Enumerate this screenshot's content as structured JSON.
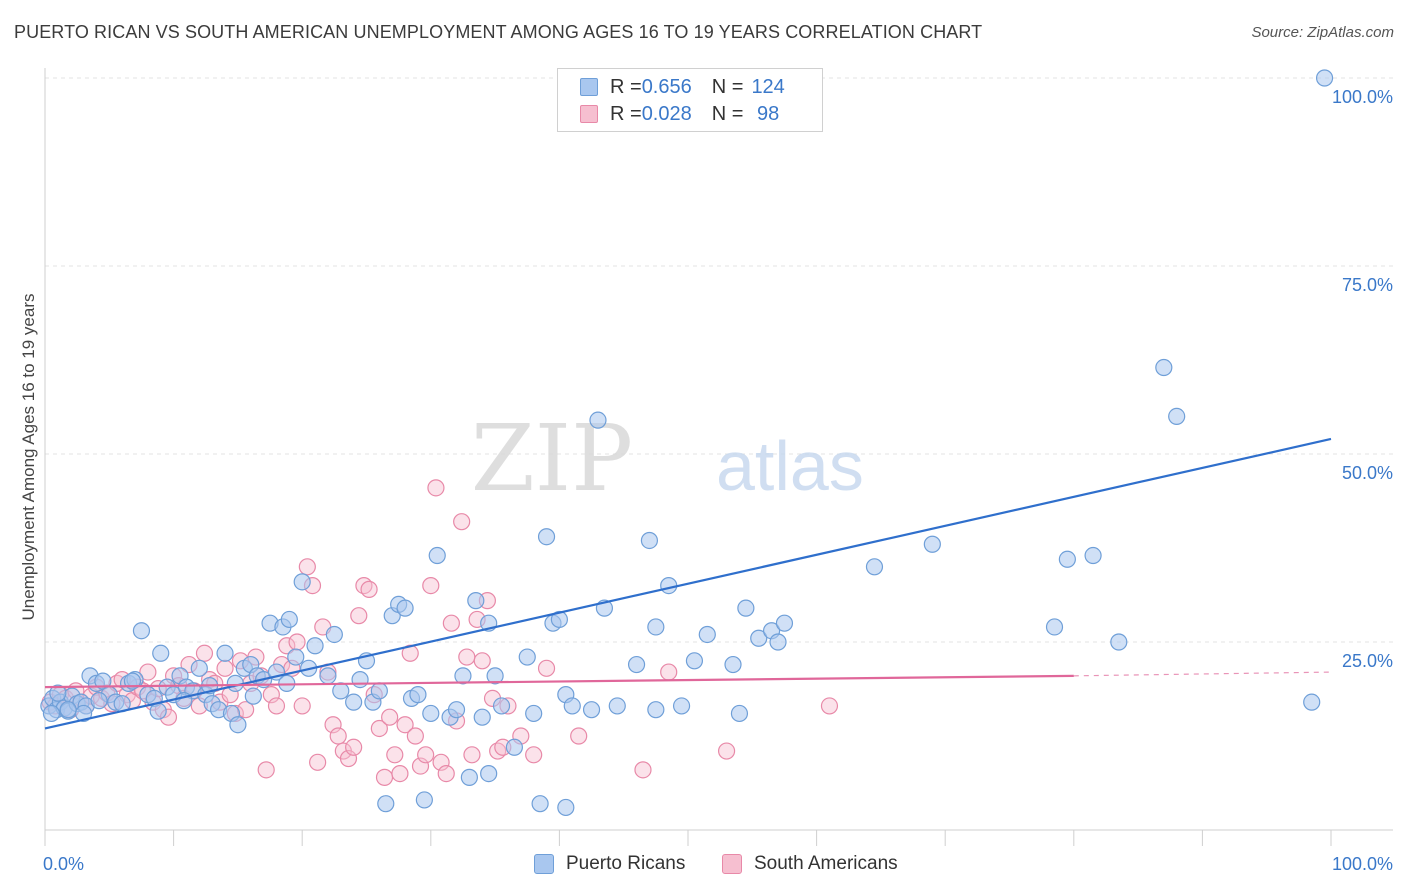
{
  "title": "PUERTO RICAN VS SOUTH AMERICAN UNEMPLOYMENT AMONG AGES 16 TO 19 YEARS CORRELATION CHART",
  "source": "Source: ZipAtlas.com",
  "watermark": {
    "zip": "ZIP",
    "atlas": "atlas"
  },
  "legend": [
    {
      "r_label": "R = ",
      "r_value": "0.656",
      "n_label": "N = ",
      "n_value": "124"
    },
    {
      "r_label": "R = ",
      "r_value": "0.028",
      "n_label": "N = ",
      "n_value": " 98"
    }
  ],
  "bottom_legend": [
    "Puerto Ricans",
    "South Americans"
  ],
  "colors": {
    "blue_fill": "#a9c7ef",
    "blue_stroke": "#6f9fd8",
    "blue_line": "#2f6fcc",
    "pink_fill": "#f6bfd0",
    "pink_stroke": "#e889a8",
    "pink_line": "#e0679a",
    "tick_label": "#3a78c9",
    "grid": "#e3e3e3"
  },
  "chart_data": {
    "type": "scatter",
    "title": "PUERTO RICAN VS SOUTH AMERICAN UNEMPLOYMENT AMONG AGES 16 TO 19 YEARS CORRELATION CHART",
    "xlabel": "",
    "ylabel": "Unemployment Among Ages 16 to 19 years",
    "xlim": [
      0,
      100
    ],
    "ylim": [
      0,
      100
    ],
    "x_tick_labels": [
      "0.0%",
      "100.0%"
    ],
    "y_ticks": [
      25,
      50,
      75,
      100
    ],
    "y_tick_labels": [
      "25.0%",
      "50.0%",
      "75.0%",
      "100.0%"
    ],
    "grid": true,
    "legend_position": "top-center",
    "series": [
      {
        "name": "Puerto Ricans",
        "R": 0.656,
        "N": 124,
        "trend": {
          "x0": 0,
          "y0": 13.5,
          "x1": 100,
          "y1": 52.0,
          "dashed_from": null
        },
        "points": [
          [
            0.3,
            16.5
          ],
          [
            0.6,
            17.5
          ],
          [
            0.9,
            16.0
          ],
          [
            1.2,
            17.0
          ],
          [
            1.5,
            16.2
          ],
          [
            1.8,
            15.8
          ],
          [
            2.1,
            17.8
          ],
          [
            2.5,
            16.8
          ],
          [
            0.5,
            15.5
          ],
          [
            1.0,
            18.2
          ],
          [
            2.8,
            17.0
          ],
          [
            3.2,
            16.5
          ],
          [
            3.5,
            20.5
          ],
          [
            4.0,
            19.5
          ],
          [
            4.5,
            19.8
          ],
          [
            5.0,
            18.0
          ],
          [
            5.5,
            17.0
          ],
          [
            6.0,
            16.8
          ],
          [
            6.5,
            19.5
          ],
          [
            7.0,
            20.0
          ],
          [
            7.5,
            26.5
          ],
          [
            8.0,
            18.0
          ],
          [
            8.5,
            17.5
          ],
          [
            9.0,
            23.5
          ],
          [
            9.5,
            19.0
          ],
          [
            10.0,
            18.0
          ],
          [
            10.5,
            20.5
          ],
          [
            11.0,
            19.0
          ],
          [
            11.5,
            18.5
          ],
          [
            12.0,
            21.5
          ],
          [
            12.5,
            18.0
          ],
          [
            13.0,
            16.8
          ],
          [
            13.5,
            16.0
          ],
          [
            14.0,
            23.5
          ],
          [
            14.5,
            15.5
          ],
          [
            15.0,
            14.0
          ],
          [
            15.5,
            21.5
          ],
          [
            16.0,
            22.0
          ],
          [
            16.5,
            20.5
          ],
          [
            17.0,
            20.0
          ],
          [
            17.5,
            27.5
          ],
          [
            18.0,
            21.0
          ],
          [
            18.5,
            27.0
          ],
          [
            19.0,
            28.0
          ],
          [
            19.5,
            23.0
          ],
          [
            20.0,
            33.0
          ],
          [
            21.0,
            24.5
          ],
          [
            22.0,
            20.5
          ],
          [
            23.0,
            18.5
          ],
          [
            24.0,
            17.0
          ],
          [
            24.5,
            20.0
          ],
          [
            25.0,
            22.5
          ],
          [
            25.5,
            17.0
          ],
          [
            26.0,
            18.5
          ],
          [
            27.0,
            28.5
          ],
          [
            27.5,
            30.0
          ],
          [
            28.0,
            29.5
          ],
          [
            28.5,
            17.5
          ],
          [
            29.0,
            18.0
          ],
          [
            30.5,
            36.5
          ],
          [
            31.5,
            15.0
          ],
          [
            32.5,
            20.5
          ],
          [
            33.5,
            30.5
          ],
          [
            34.0,
            15.0
          ],
          [
            34.5,
            27.5
          ],
          [
            35.0,
            20.5
          ],
          [
            35.5,
            16.5
          ],
          [
            36.5,
            11.0
          ],
          [
            37.5,
            23.0
          ],
          [
            38.0,
            15.5
          ],
          [
            39.0,
            39.0
          ],
          [
            39.5,
            27.5
          ],
          [
            40.0,
            28.0
          ],
          [
            40.5,
            18.0
          ],
          [
            41.0,
            16.5
          ],
          [
            42.5,
            16.0
          ],
          [
            43.0,
            54.5
          ],
          [
            43.5,
            29.5
          ],
          [
            44.5,
            16.5
          ],
          [
            47.0,
            38.5
          ],
          [
            47.5,
            27.0
          ],
          [
            48.5,
            32.5
          ],
          [
            49.5,
            16.5
          ],
          [
            50.5,
            22.5
          ],
          [
            51.5,
            26.0
          ],
          [
            53.5,
            22.0
          ],
          [
            54.5,
            29.5
          ],
          [
            54.0,
            15.5
          ],
          [
            55.5,
            25.5
          ],
          [
            56.5,
            26.5
          ],
          [
            57.5,
            27.5
          ],
          [
            57.0,
            25.0
          ],
          [
            64.5,
            35.0
          ],
          [
            69.0,
            38.0
          ],
          [
            78.5,
            27.0
          ],
          [
            79.5,
            36.0
          ],
          [
            81.5,
            36.5
          ],
          [
            83.5,
            25.0
          ],
          [
            87.0,
            61.5
          ],
          [
            88.0,
            55.0
          ],
          [
            98.5,
            17.0
          ],
          [
            99.5,
            100.0
          ],
          [
            1.8,
            16.0
          ],
          [
            3.0,
            15.5
          ],
          [
            4.2,
            17.2
          ],
          [
            6.8,
            19.8
          ],
          [
            8.8,
            15.8
          ],
          [
            10.8,
            17.2
          ],
          [
            12.8,
            19.2
          ],
          [
            14.8,
            19.5
          ],
          [
            16.2,
            17.8
          ],
          [
            18.8,
            19.5
          ],
          [
            20.5,
            21.5
          ],
          [
            22.5,
            26.0
          ],
          [
            26.5,
            3.5
          ],
          [
            29.5,
            4.0
          ],
          [
            30.0,
            15.5
          ],
          [
            33.0,
            7.0
          ],
          [
            34.5,
            7.5
          ],
          [
            32.0,
            16.0
          ],
          [
            38.5,
            3.5
          ],
          [
            40.5,
            3.0
          ],
          [
            46.0,
            22.0
          ],
          [
            47.5,
            16.0
          ]
        ]
      },
      {
        "name": "South Americans",
        "R": 0.028,
        "N": 98,
        "trend": {
          "x0": 0,
          "y0": 19.0,
          "x1": 80,
          "y1": 20.5,
          "dashed_from": 80,
          "dashed_to": 100,
          "dashed_y1": 21.0
        },
        "points": [
          [
            0.4,
            17.0
          ],
          [
            0.8,
            16.5
          ],
          [
            1.2,
            18.0
          ],
          [
            1.6,
            17.5
          ],
          [
            2.0,
            16.0
          ],
          [
            2.4,
            18.5
          ],
          [
            2.8,
            17.0
          ],
          [
            3.2,
            16.5
          ],
          [
            3.6,
            17.8
          ],
          [
            4.0,
            19.0
          ],
          [
            4.4,
            17.5
          ],
          [
            4.8,
            18.2
          ],
          [
            5.2,
            16.8
          ],
          [
            5.6,
            19.5
          ],
          [
            6.0,
            20.0
          ],
          [
            6.4,
            18.0
          ],
          [
            6.8,
            17.2
          ],
          [
            7.2,
            19.0
          ],
          [
            7.6,
            18.5
          ],
          [
            8.0,
            21.0
          ],
          [
            8.4,
            17.0
          ],
          [
            8.8,
            18.8
          ],
          [
            9.2,
            16.0
          ],
          [
            9.6,
            15.0
          ],
          [
            10.0,
            20.5
          ],
          [
            10.4,
            19.2
          ],
          [
            10.8,
            17.5
          ],
          [
            11.2,
            22.0
          ],
          [
            11.6,
            18.5
          ],
          [
            12.0,
            16.5
          ],
          [
            12.4,
            23.5
          ],
          [
            12.8,
            20.0
          ],
          [
            13.2,
            19.5
          ],
          [
            13.6,
            17.0
          ],
          [
            14.0,
            21.5
          ],
          [
            14.4,
            18.0
          ],
          [
            14.8,
            15.5
          ],
          [
            15.2,
            22.5
          ],
          [
            15.6,
            16.0
          ],
          [
            16.0,
            19.5
          ],
          [
            16.4,
            23.0
          ],
          [
            16.8,
            20.5
          ],
          [
            17.2,
            8.0
          ],
          [
            17.6,
            18.0
          ],
          [
            18.0,
            16.5
          ],
          [
            18.4,
            22.0
          ],
          [
            18.8,
            24.5
          ],
          [
            19.2,
            21.5
          ],
          [
            19.6,
            25.0
          ],
          [
            20.0,
            16.5
          ],
          [
            20.4,
            35.0
          ],
          [
            20.8,
            32.5
          ],
          [
            21.2,
            9.0
          ],
          [
            21.6,
            27.0
          ],
          [
            22.0,
            21.0
          ],
          [
            22.4,
            14.0
          ],
          [
            22.8,
            12.5
          ],
          [
            23.2,
            10.5
          ],
          [
            23.6,
            9.5
          ],
          [
            24.0,
            11.0
          ],
          [
            24.4,
            28.5
          ],
          [
            24.8,
            32.5
          ],
          [
            25.2,
            32.0
          ],
          [
            25.6,
            18.0
          ],
          [
            26.0,
            13.5
          ],
          [
            26.4,
            7.0
          ],
          [
            26.8,
            15.0
          ],
          [
            27.2,
            10.0
          ],
          [
            27.6,
            7.5
          ],
          [
            28.0,
            14.0
          ],
          [
            28.4,
            23.5
          ],
          [
            28.8,
            12.5
          ],
          [
            29.2,
            8.5
          ],
          [
            29.6,
            10.0
          ],
          [
            30.0,
            32.5
          ],
          [
            30.4,
            45.5
          ],
          [
            30.8,
            9.0
          ],
          [
            31.2,
            7.5
          ],
          [
            31.6,
            27.5
          ],
          [
            32.0,
            14.5
          ],
          [
            32.4,
            41.0
          ],
          [
            32.8,
            23.0
          ],
          [
            33.2,
            10.0
          ],
          [
            33.6,
            28.0
          ],
          [
            34.0,
            22.5
          ],
          [
            34.4,
            30.5
          ],
          [
            34.8,
            17.5
          ],
          [
            35.2,
            10.5
          ],
          [
            35.6,
            11.0
          ],
          [
            36.0,
            16.5
          ],
          [
            37.0,
            12.5
          ],
          [
            38.0,
            10.0
          ],
          [
            39.0,
            21.5
          ],
          [
            41.5,
            12.5
          ],
          [
            46.5,
            8.0
          ],
          [
            48.5,
            21.0
          ],
          [
            53.0,
            10.5
          ],
          [
            61.0,
            16.5
          ]
        ]
      }
    ]
  }
}
